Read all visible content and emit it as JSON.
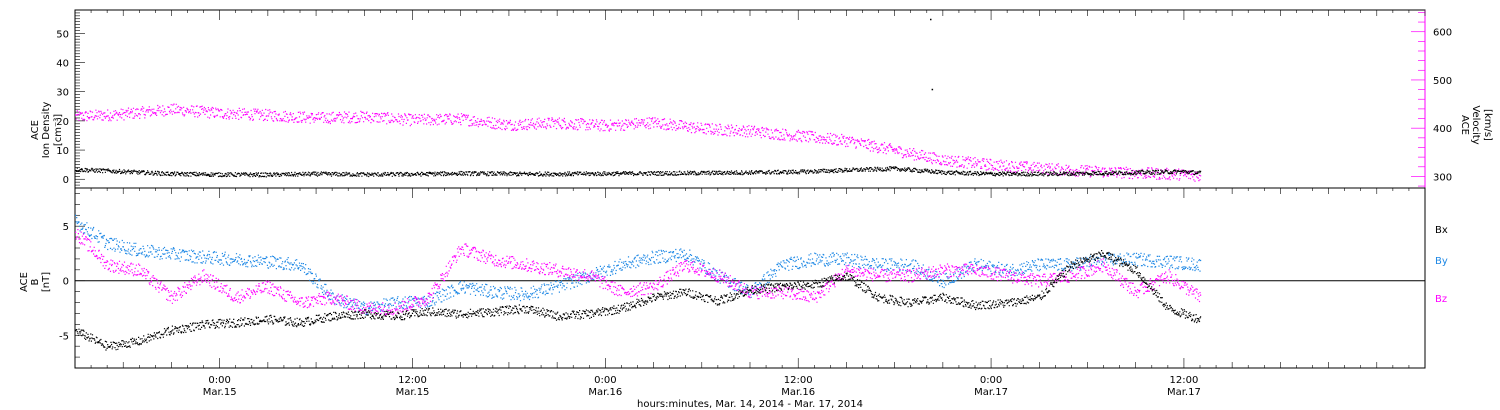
{
  "chart_data": [
    {
      "type": "scatter",
      "panel": "ace-density-velocity",
      "ylabel_lines": [
        "ACE",
        "Ion Density",
        "[cm⁻³]"
      ],
      "y2label_lines": [
        "ACE",
        "Velocity",
        "[km/s]"
      ],
      "ylim": [
        -3,
        58
      ],
      "y2lim": [
        276,
        645
      ],
      "yticks": [
        "0",
        "10",
        "20",
        "30",
        "40",
        "50"
      ],
      "y2ticks": [
        "300",
        "400",
        "500",
        "600"
      ],
      "series": [
        {
          "color": "#000000",
          "axis": "left",
          "x": [
            0,
            3,
            6,
            9,
            12,
            15,
            18,
            21,
            24,
            27,
            30,
            33,
            36,
            39,
            42,
            45,
            48,
            51,
            54,
            57,
            60,
            63,
            66,
            69,
            70
          ],
          "y": [
            3.5,
            2.8,
            2.0,
            1.8,
            1.7,
            2.0,
            1.8,
            1.9,
            2.2,
            2.0,
            2.0,
            2.1,
            2.2,
            2.3,
            2.5,
            2.7,
            3.3,
            3.8,
            2.5,
            2.0,
            2.0,
            2.2,
            2.5,
            2.8,
            2.3
          ]
        },
        {
          "color": "#ff00ff",
          "axis": "right",
          "x": [
            0,
            3,
            6,
            9,
            12,
            15,
            18,
            21,
            24,
            27,
            30,
            33,
            36,
            39,
            42,
            45,
            48,
            51,
            54,
            57,
            60,
            63,
            66,
            69,
            70
          ],
          "y": [
            425,
            430,
            440,
            432,
            428,
            422,
            425,
            418,
            420,
            408,
            412,
            406,
            413,
            400,
            395,
            385,
            375,
            355,
            335,
            325,
            318,
            312,
            308,
            305,
            302
          ]
        }
      ],
      "isolated_points": [
        {
          "x": 53.2,
          "y": 55
        },
        {
          "x": 53.3,
          "y": 31
        }
      ]
    },
    {
      "type": "scatter",
      "panel": "ace-magnetic-field",
      "ylabel_lines": [
        "ACE",
        "B",
        "[nT]"
      ],
      "ylim": [
        -8,
        8.5
      ],
      "yticks": [
        "-5",
        "0",
        "5"
      ],
      "legend": [
        "Bx",
        "By",
        "Bz"
      ],
      "legend_position": "right",
      "series": [
        {
          "name": "Bx",
          "color": "#000000",
          "x": [
            0,
            2,
            4,
            6,
            8,
            10,
            12,
            14,
            16,
            18,
            20,
            22,
            24,
            26,
            28,
            30,
            32,
            34,
            36,
            38,
            40,
            42,
            44,
            46,
            48,
            50,
            52,
            54,
            56,
            58,
            60,
            62,
            64,
            66,
            68,
            70
          ],
          "y": [
            -4.5,
            -6.0,
            -5.5,
            -4.5,
            -4.0,
            -3.8,
            -3.5,
            -3.8,
            -3.2,
            -3.0,
            -3.2,
            -2.8,
            -3.0,
            -2.8,
            -2.5,
            -3.2,
            -3.0,
            -2.5,
            -1.5,
            -1.0,
            -1.8,
            -0.8,
            -0.5,
            -0.3,
            0.5,
            -1.5,
            -2.0,
            -1.5,
            -2.2,
            -2.0,
            -1.5,
            1.5,
            2.5,
            1.0,
            -2.5,
            -3.5
          ]
        },
        {
          "name": "By",
          "color": "#1e88e5",
          "x": [
            0,
            2,
            4,
            6,
            8,
            10,
            12,
            14,
            16,
            18,
            20,
            22,
            24,
            26,
            28,
            30,
            32,
            34,
            36,
            38,
            40,
            42,
            44,
            46,
            48,
            50,
            52,
            54,
            56,
            58,
            60,
            62,
            64,
            66,
            68,
            70
          ],
          "y": [
            5.5,
            3.5,
            2.8,
            2.5,
            2.2,
            2.0,
            1.8,
            1.5,
            -1.5,
            -2.5,
            -2.0,
            -1.8,
            -0.5,
            -1.0,
            -1.2,
            -0.5,
            0.5,
            1.5,
            2.2,
            2.5,
            0.5,
            -1.0,
            1.5,
            2.0,
            2.0,
            1.5,
            1.5,
            0.0,
            1.5,
            1.0,
            1.5,
            1.5,
            2.0,
            2.0,
            1.8,
            1.5
          ]
        },
        {
          "name": "Bz",
          "color": "#ff00ff",
          "x": [
            0,
            2,
            4,
            6,
            8,
            10,
            12,
            14,
            16,
            18,
            20,
            22,
            24,
            26,
            28,
            30,
            32,
            34,
            36,
            38,
            40,
            42,
            44,
            46,
            48,
            50,
            52,
            54,
            56,
            58,
            60,
            62,
            64,
            66,
            68,
            70
          ],
          "y": [
            4.5,
            1.5,
            1.0,
            -1.5,
            0.5,
            -1.5,
            -0.5,
            -2.0,
            -1.5,
            -2.5,
            -2.5,
            -1.5,
            3.0,
            2.0,
            1.5,
            1.0,
            0.5,
            -1.0,
            -0.5,
            1.5,
            0.5,
            -1.0,
            -1.0,
            -1.5,
            1.0,
            0.5,
            0.5,
            1.0,
            1.0,
            0.5,
            0.0,
            0.5,
            1.5,
            -1.0,
            0.5,
            -1.5
          ]
        }
      ]
    }
  ],
  "time_axis": {
    "xlim": [
      0,
      84
    ],
    "major_ticks": [
      {
        "x": 9,
        "time": "0:00",
        "date": "Mar.15"
      },
      {
        "x": 21,
        "time": "12:00",
        "date": "Mar.15"
      },
      {
        "x": 33,
        "time": "0:00",
        "date": "Mar.16"
      },
      {
        "x": 45,
        "time": "12:00",
        "date": "Mar.16"
      },
      {
        "x": 57,
        "time": "0:00",
        "date": "Mar.17"
      },
      {
        "x": 69,
        "time": "12:00",
        "date": "Mar.17"
      }
    ],
    "xlabel": "hours:minutes, Mar. 14, 2014 - Mar. 17, 2014"
  },
  "colors": {
    "black": "#000000",
    "blue": "#1e88e5",
    "magenta": "#ff00ff"
  }
}
